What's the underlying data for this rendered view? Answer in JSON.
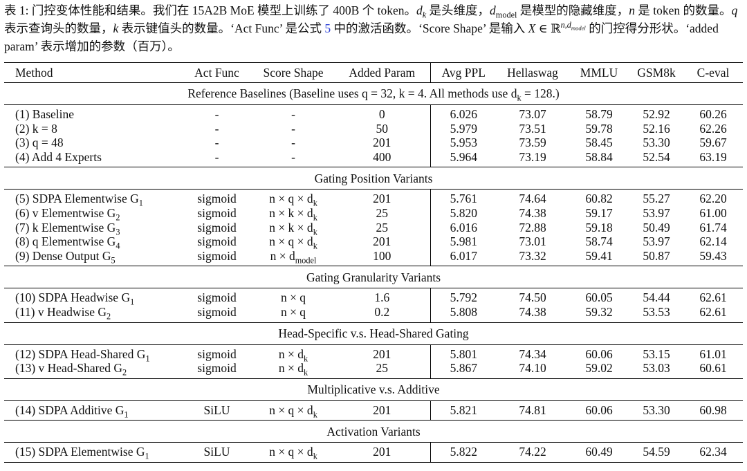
{
  "caption": [
    "表 1: 门控变体性能和结果。我们在 15A2B MoE 模型上训练了 400B 个 token。",
    "d",
    "k",
    " 是头维度，",
    "d",
    "model",
    " 是模型的隐藏维度，",
    "n",
    " 是 token 的数量。",
    "q",
    " 表示查询头的数量，",
    "k",
    " 表示键值头的数量。‘Act Func’ 是公式 ",
    "5",
    " 中的激活函数。‘Score Shape’ 是输入 ",
    "X",
    " ∈ ℝ",
    "n,d",
    "model",
    " 的门控得分形状。‘added param’ 表示增加的参数（百万）。"
  ],
  "table": {
    "header": [
      "Method",
      "Act Func",
      "Score Shape",
      "Added Param",
      "Avg PPL",
      "Hellaswag",
      "MMLU",
      "GSM8k",
      "C-eval"
    ],
    "sections": [
      {
        "title": [
          "Reference Baselines (Baseline uses q = 32, k = 4. All methods use d",
          "k",
          " = 128.)"
        ],
        "rows": [
          [
            "(1) Baseline",
            "-",
            "-",
            "0",
            "6.026",
            "73.07",
            "58.79",
            "52.92",
            "60.26"
          ],
          [
            "(2) k = 8",
            "-",
            "-",
            "50",
            "5.979",
            "73.51",
            "59.78",
            "52.16",
            "62.26"
          ],
          [
            "(3) q = 48",
            "-",
            "-",
            "201",
            "5.953",
            "73.59",
            "58.45",
            "53.30",
            "59.67"
          ],
          [
            "(4) Add 4 Experts",
            "-",
            "-",
            "400",
            "5.964",
            "73.19",
            "58.84",
            "52.54",
            "63.19"
          ]
        ]
      },
      {
        "title": "Gating Position Variants",
        "rows": [
          [
            [
              "(5) SDPA Elementwise G",
              "1"
            ],
            "sigmoid",
            [
              "n × q × d",
              "k"
            ],
            "201",
            "5.761",
            "74.64",
            "60.82",
            "55.27",
            "62.20"
          ],
          [
            [
              "(6) v Elementwise G",
              "2"
            ],
            "sigmoid",
            [
              "n × k × d",
              "k"
            ],
            "25",
            "5.820",
            "74.38",
            "59.17",
            "53.97",
            "61.00"
          ],
          [
            [
              "(7) k Elementwise G",
              "3"
            ],
            "sigmoid",
            [
              "n × k × d",
              "k"
            ],
            "25",
            "6.016",
            "72.88",
            "59.18",
            "50.49",
            "61.74"
          ],
          [
            [
              "(8) q Elementwise G",
              "4"
            ],
            "sigmoid",
            [
              "n × q × d",
              "k"
            ],
            "201",
            "5.981",
            "73.01",
            "58.74",
            "53.97",
            "62.14"
          ],
          [
            [
              "(9) Dense Output G",
              "5"
            ],
            "sigmoid",
            [
              "n × d",
              "model"
            ],
            "100",
            "6.017",
            "73.32",
            "59.41",
            "50.87",
            "59.43"
          ]
        ]
      },
      {
        "title": "Gating Granularity Variants",
        "rows": [
          [
            [
              "(10) SDPA Headwise G",
              "1"
            ],
            "sigmoid",
            "n × q",
            "1.6",
            "5.792",
            "74.50",
            "60.05",
            "54.44",
            "62.61"
          ],
          [
            [
              "(11) v Headwise G",
              "2"
            ],
            "sigmoid",
            "n × q",
            "0.2",
            "5.808",
            "74.38",
            "59.32",
            "53.53",
            "62.61"
          ]
        ]
      },
      {
        "title": "Head-Specific v.s. Head-Shared Gating",
        "rows": [
          [
            [
              "(12) SDPA Head-Shared G",
              "1"
            ],
            "sigmoid",
            [
              "n × d",
              "k"
            ],
            "201",
            "5.801",
            "74.34",
            "60.06",
            "53.15",
            "61.01"
          ],
          [
            [
              "(13) v Head-Shared G",
              "2"
            ],
            "sigmoid",
            [
              "n × d",
              "k"
            ],
            "25",
            "5.867",
            "74.10",
            "59.02",
            "53.03",
            "60.61"
          ]
        ]
      },
      {
        "title": "Multiplicative v.s. Additive",
        "rows": [
          [
            [
              "(14) SDPA Additive G",
              "1"
            ],
            "SiLU",
            [
              "n × q × d",
              "k"
            ],
            "201",
            "5.821",
            "74.81",
            "60.06",
            "53.30",
            "60.98"
          ]
        ]
      },
      {
        "title": "Activation Variants",
        "rows": [
          [
            [
              "(15) SDPA Elementwise G",
              "1"
            ],
            "SiLU",
            [
              "n × q × d",
              "k"
            ],
            "201",
            "5.822",
            "74.22",
            "60.49",
            "54.59",
            "62.34"
          ]
        ]
      }
    ]
  }
}
